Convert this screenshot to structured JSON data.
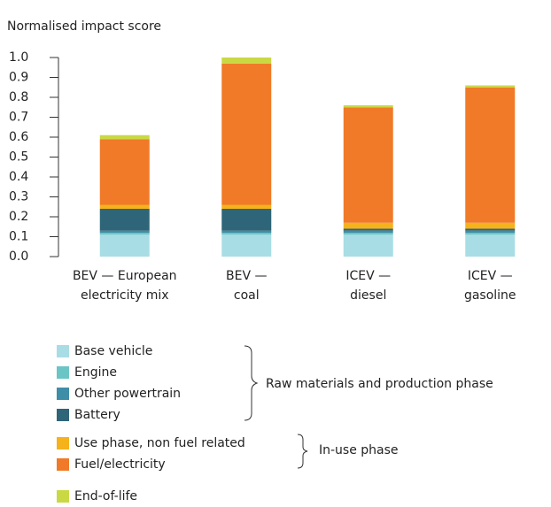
{
  "chart_data": {
    "type": "stacked_bar",
    "title": "Normalised impact score",
    "categories": [
      [
        "BEV — European",
        "electricity mix"
      ],
      [
        "BEV —",
        "coal"
      ],
      [
        "ICEV —",
        "diesel"
      ],
      [
        "ICEV —",
        "gasoline"
      ]
    ],
    "series": [
      {
        "name": "Base vehicle",
        "color": "#a8dde5",
        "values": [
          0.11,
          0.11,
          0.11,
          0.11
        ]
      },
      {
        "name": "Engine",
        "color": "#6cc5c5",
        "values": [
          0.01,
          0.01,
          0.01,
          0.01
        ]
      },
      {
        "name": "Other powertrain",
        "color": "#3e8ea8",
        "values": [
          0.01,
          0.01,
          0.01,
          0.01
        ]
      },
      {
        "name": "Battery",
        "color": "#2e6578",
        "values": [
          0.11,
          0.11,
          0.01,
          0.01
        ]
      },
      {
        "name": "Use phase, non fuel related",
        "color": "#f5b21b",
        "values": [
          0.02,
          0.02,
          0.03,
          0.03
        ]
      },
      {
        "name": "Fuel/electricity",
        "color": "#f07a28",
        "values": [
          0.33,
          0.71,
          0.58,
          0.68
        ]
      },
      {
        "name": "End-of-life",
        "color": "#c9d944",
        "values": [
          0.02,
          0.03,
          0.01,
          0.01
        ]
      }
    ],
    "ylim": [
      0,
      1.0
    ],
    "yticks": [
      {
        "value": 0,
        "label": "0.0"
      },
      0.1,
      0.2,
      0.3,
      0.4,
      0.5,
      0.6,
      0.7,
      0.8,
      0.9,
      {
        "value": 1,
        "label": "1.0"
      }
    ],
    "annotations": [
      "Raw materials and production phase",
      "In-use phase"
    ]
  }
}
